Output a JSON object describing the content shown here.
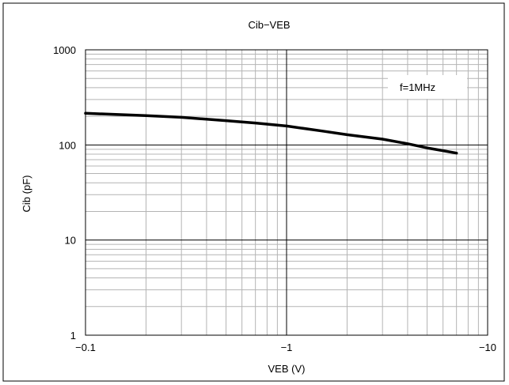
{
  "chart_data": {
    "type": "line",
    "title": "Cib−VEB",
    "xlabel": "VEB (V)",
    "ylabel": "Cib (pF)",
    "x_scale": "log",
    "y_scale": "log",
    "xlim": [
      -0.1,
      -10
    ],
    "ylim": [
      1,
      1000
    ],
    "x_ticks": [
      -0.1,
      -1,
      -10
    ],
    "x_tick_labels": [
      "−0.1",
      "−1",
      "−10"
    ],
    "y_ticks": [
      1,
      10,
      100,
      1000
    ],
    "y_tick_labels": [
      "1",
      "10",
      "100",
      "1000"
    ],
    "grid": true,
    "legend": "none",
    "annotation": "f=1MHz",
    "series": [
      {
        "x": [
          -0.1,
          -0.2,
          -0.3,
          -0.5,
          -0.7,
          -1,
          -1.5,
          -2,
          -3,
          -4,
          -5,
          -6,
          -7
        ],
        "y": [
          215,
          203,
          195,
          180,
          170,
          158,
          140,
          128,
          115,
          103,
          93,
          87,
          82
        ]
      }
    ],
    "colors": {
      "line": "#000000",
      "major_grid": "#000000",
      "minor_grid": "#b4b4b4",
      "frame": "#000000"
    }
  }
}
